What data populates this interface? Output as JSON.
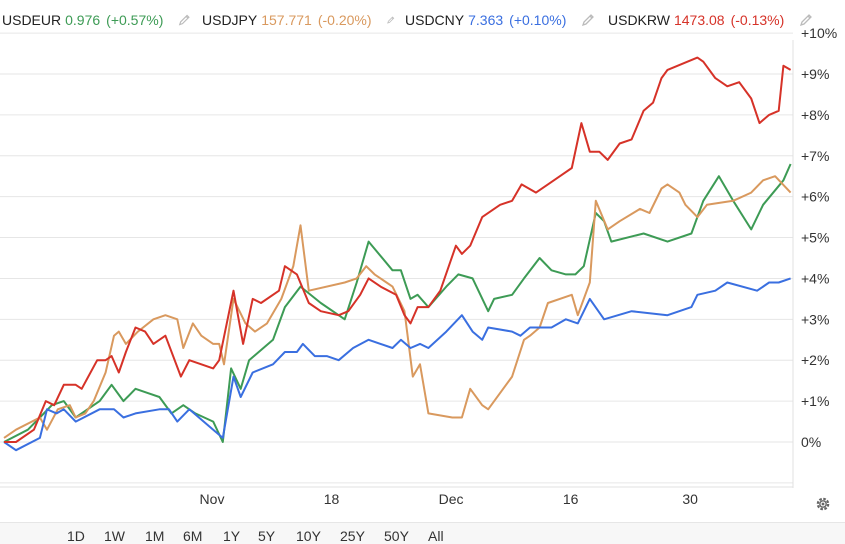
{
  "legend": [
    {
      "symbol": "USDEUR",
      "value": "0.976",
      "change": "(+0.57%)",
      "color": "#3d9b55"
    },
    {
      "symbol": "USDJPY",
      "value": "157.771",
      "change": "(-0.20%)",
      "color": "#d9995e"
    },
    {
      "symbol": "USDCNY",
      "value": "7.363",
      "change": "(+0.10%)",
      "color": "#3a6fe0"
    },
    {
      "symbol": "USDKRW",
      "value": "1473.08",
      "change": "(-0.13%)",
      "color": "#d63228"
    }
  ],
  "icons": {
    "edit": "pencil-icon",
    "settings": "gear-icon"
  },
  "range_buttons": [
    "1D",
    "1W",
    "1M",
    "6M",
    "1Y",
    "5Y",
    "10Y",
    "25Y",
    "50Y",
    "All"
  ],
  "chart_data": {
    "type": "line",
    "xlim": [
      0,
      66
    ],
    "ylim": [
      -1,
      10
    ],
    "y_ticks": [
      0,
      1,
      2,
      3,
      4,
      5,
      6,
      7,
      8,
      9
    ],
    "y_tick_labels": [
      "0%",
      "+1%",
      "+2%",
      "+3%",
      "+4%",
      "+5%",
      "+6%",
      "+7%",
      "+8%",
      "+9%"
    ],
    "top_tick_label": "+10%",
    "x_ticks": [
      {
        "x": 17.4,
        "label": "Nov"
      },
      {
        "x": 27.4,
        "label": "18"
      },
      {
        "x": 37.4,
        "label": "Dec"
      },
      {
        "x": 47.4,
        "label": "16"
      },
      {
        "x": 57.4,
        "label": "30"
      }
    ],
    "grid": true,
    "series": [
      {
        "name": "USDEUR",
        "color": "#3d9b55",
        "points": [
          [
            0,
            0
          ],
          [
            2,
            0.3
          ],
          [
            3,
            0.6
          ],
          [
            4,
            0.9
          ],
          [
            5,
            1.0
          ],
          [
            6,
            0.6
          ],
          [
            8,
            1.0
          ],
          [
            9,
            1.4
          ],
          [
            10,
            1.0
          ],
          [
            11,
            1.3
          ],
          [
            12,
            1.2
          ],
          [
            13,
            1.1
          ],
          [
            14,
            0.7
          ],
          [
            15,
            0.9
          ],
          [
            16,
            0.7
          ],
          [
            17.5,
            0.5
          ],
          [
            18.3,
            0.0
          ],
          [
            19,
            1.8
          ],
          [
            19.8,
            1.3
          ],
          [
            20.5,
            2.0
          ],
          [
            22.5,
            2.5
          ],
          [
            23.5,
            3.3
          ],
          [
            24.8,
            3.8
          ],
          [
            26.5,
            3.4
          ],
          [
            28.5,
            3.0
          ],
          [
            29.5,
            3.9
          ],
          [
            30.5,
            4.9
          ],
          [
            32.5,
            4.2
          ],
          [
            33.2,
            4.2
          ],
          [
            34,
            3.5
          ],
          [
            34.6,
            3.6
          ],
          [
            35.5,
            3.3
          ],
          [
            37,
            3.8
          ],
          [
            38,
            4.1
          ],
          [
            39.2,
            4.0
          ],
          [
            40.5,
            3.2
          ],
          [
            41,
            3.5
          ],
          [
            42.5,
            3.6
          ],
          [
            43.5,
            4.0
          ],
          [
            44.8,
            4.5
          ],
          [
            45.8,
            4.2
          ],
          [
            47,
            4.1
          ],
          [
            47.8,
            4.1
          ],
          [
            48.5,
            4.3
          ],
          [
            49.5,
            5.6
          ],
          [
            50.2,
            5.4
          ],
          [
            50.8,
            4.9
          ],
          [
            53.5,
            5.1
          ],
          [
            55.5,
            4.9
          ],
          [
            57.5,
            5.1
          ],
          [
            58.5,
            5.9
          ],
          [
            59.8,
            6.5
          ],
          [
            61,
            5.9
          ],
          [
            62.5,
            5.2
          ],
          [
            63.5,
            5.8
          ],
          [
            65.2,
            6.4
          ],
          [
            65.8,
            6.8
          ]
        ]
      },
      {
        "name": "USDJPY",
        "color": "#d9995e",
        "points": [
          [
            0,
            0.1
          ],
          [
            1,
            0.3
          ],
          [
            3,
            0.6
          ],
          [
            3.6,
            0.3
          ],
          [
            4.5,
            0.8
          ],
          [
            5.5,
            0.9
          ],
          [
            6,
            0.6
          ],
          [
            6.8,
            0.7
          ],
          [
            7.5,
            1.0
          ],
          [
            8.5,
            1.7
          ],
          [
            9.2,
            2.6
          ],
          [
            9.6,
            2.7
          ],
          [
            10.2,
            2.4
          ],
          [
            11.2,
            2.7
          ],
          [
            12.5,
            3.0
          ],
          [
            13.5,
            3.1
          ],
          [
            14.5,
            3.0
          ],
          [
            15,
            2.3
          ],
          [
            15.8,
            2.9
          ],
          [
            16.5,
            2.6
          ],
          [
            17.5,
            2.4
          ],
          [
            18,
            2.4
          ],
          [
            18.4,
            1.9
          ],
          [
            19.2,
            3.5
          ],
          [
            20.2,
            2.9
          ],
          [
            21,
            2.7
          ],
          [
            22,
            2.9
          ],
          [
            23.2,
            3.5
          ],
          [
            24.2,
            4.3
          ],
          [
            24.8,
            5.3
          ],
          [
            25.5,
            3.7
          ],
          [
            28.5,
            3.9
          ],
          [
            29.5,
            4.0
          ],
          [
            30.3,
            4.3
          ],
          [
            31,
            4.1
          ],
          [
            32.5,
            3.8
          ],
          [
            33.5,
            3.2
          ],
          [
            34.2,
            1.6
          ],
          [
            34.8,
            1.9
          ],
          [
            35.5,
            0.7
          ],
          [
            37.5,
            0.6
          ],
          [
            38.3,
            0.6
          ],
          [
            39,
            1.3
          ],
          [
            40,
            0.9
          ],
          [
            40.5,
            0.8
          ],
          [
            42.5,
            1.6
          ],
          [
            43.5,
            2.5
          ],
          [
            44,
            2.6
          ],
          [
            44.8,
            2.8
          ],
          [
            45.5,
            3.4
          ],
          [
            47.5,
            3.6
          ],
          [
            48,
            3.1
          ],
          [
            49,
            3.9
          ],
          [
            49.5,
            5.9
          ],
          [
            50.5,
            5.2
          ],
          [
            51.5,
            5.4
          ],
          [
            53.2,
            5.7
          ],
          [
            54,
            5.6
          ],
          [
            55,
            6.2
          ],
          [
            55.5,
            6.3
          ],
          [
            56.5,
            6.1
          ],
          [
            57,
            5.8
          ],
          [
            58,
            5.5
          ],
          [
            58.8,
            5.8
          ],
          [
            61,
            5.9
          ],
          [
            62.5,
            6.1
          ],
          [
            63.5,
            6.4
          ],
          [
            64.5,
            6.5
          ],
          [
            65.8,
            6.1
          ]
        ]
      },
      {
        "name": "USDCNY",
        "color": "#3a6fe0",
        "points": [
          [
            0,
            0
          ],
          [
            1,
            -0.2
          ],
          [
            3,
            0.1
          ],
          [
            3.6,
            0.8
          ],
          [
            4.4,
            0.7
          ],
          [
            5,
            0.8
          ],
          [
            6,
            0.5
          ],
          [
            8,
            0.8
          ],
          [
            9.2,
            0.8
          ],
          [
            10,
            0.6
          ],
          [
            11,
            0.7
          ],
          [
            13,
            0.8
          ],
          [
            13.8,
            0.8
          ],
          [
            14.5,
            0.5
          ],
          [
            15.5,
            0.8
          ],
          [
            17.5,
            0.3
          ],
          [
            18.3,
            0.1
          ],
          [
            19.2,
            1.6
          ],
          [
            19.8,
            1.1
          ],
          [
            20.8,
            1.7
          ],
          [
            22.5,
            1.9
          ],
          [
            23.5,
            2.2
          ],
          [
            24.5,
            2.2
          ],
          [
            25,
            2.4
          ],
          [
            26,
            2.1
          ],
          [
            27,
            2.1
          ],
          [
            28,
            2.0
          ],
          [
            29.2,
            2.3
          ],
          [
            30.5,
            2.5
          ],
          [
            32.5,
            2.3
          ],
          [
            33.2,
            2.5
          ],
          [
            34,
            2.3
          ],
          [
            34.8,
            2.4
          ],
          [
            35.5,
            2.3
          ],
          [
            37,
            2.7
          ],
          [
            38.3,
            3.1
          ],
          [
            39.2,
            2.7
          ],
          [
            40,
            2.5
          ],
          [
            40.5,
            2.8
          ],
          [
            42.5,
            2.7
          ],
          [
            43.2,
            2.6
          ],
          [
            44,
            2.8
          ],
          [
            45.8,
            2.8
          ],
          [
            47,
            3.0
          ],
          [
            48,
            2.9
          ],
          [
            49,
            3.5
          ],
          [
            50.2,
            3.0
          ],
          [
            52.5,
            3.2
          ],
          [
            55.5,
            3.1
          ],
          [
            57.5,
            3.3
          ],
          [
            58,
            3.6
          ],
          [
            59.5,
            3.7
          ],
          [
            60.5,
            3.9
          ],
          [
            63,
            3.7
          ],
          [
            64,
            3.9
          ],
          [
            64.8,
            3.9
          ],
          [
            65.8,
            4.0
          ]
        ]
      },
      {
        "name": "USDKRW",
        "color": "#d63228",
        "points": [
          [
            0,
            0
          ],
          [
            1,
            0
          ],
          [
            2.5,
            0.3
          ],
          [
            3.5,
            1.0
          ],
          [
            4.2,
            0.9
          ],
          [
            5,
            1.4
          ],
          [
            6,
            1.4
          ],
          [
            6.5,
            1.3
          ],
          [
            7.8,
            2.0
          ],
          [
            8.5,
            2.0
          ],
          [
            9,
            2.1
          ],
          [
            9.6,
            1.7
          ],
          [
            10.2,
            2.2
          ],
          [
            11,
            2.8
          ],
          [
            11.8,
            2.7
          ],
          [
            12.5,
            2.4
          ],
          [
            13.5,
            2.6
          ],
          [
            14.8,
            1.6
          ],
          [
            15.5,
            2.0
          ],
          [
            16.5,
            1.9
          ],
          [
            17.5,
            1.8
          ],
          [
            18,
            2.0
          ],
          [
            19.2,
            3.7
          ],
          [
            20,
            2.4
          ],
          [
            20.8,
            3.5
          ],
          [
            21.5,
            3.4
          ],
          [
            23,
            3.7
          ],
          [
            23.5,
            4.3
          ],
          [
            24.5,
            4.1
          ],
          [
            25.5,
            3.4
          ],
          [
            26.5,
            3.2
          ],
          [
            28,
            3.1
          ],
          [
            28.8,
            3.2
          ],
          [
            29.8,
            3.6
          ],
          [
            30.5,
            4.0
          ],
          [
            31.5,
            3.8
          ],
          [
            32.8,
            3.6
          ],
          [
            33.5,
            3.1
          ],
          [
            34,
            2.9
          ],
          [
            34.6,
            3.3
          ],
          [
            35.5,
            3.3
          ],
          [
            36.5,
            3.7
          ],
          [
            37.8,
            4.8
          ],
          [
            38.3,
            4.6
          ],
          [
            39,
            4.8
          ],
          [
            40,
            5.5
          ],
          [
            41.5,
            5.8
          ],
          [
            42.5,
            5.9
          ],
          [
            43.3,
            6.3
          ],
          [
            44.5,
            6.1
          ],
          [
            45.5,
            6.3
          ],
          [
            46.5,
            6.5
          ],
          [
            47.5,
            6.7
          ],
          [
            48.3,
            7.8
          ],
          [
            49,
            7.1
          ],
          [
            49.8,
            7.1
          ],
          [
            50.5,
            6.9
          ],
          [
            51.5,
            7.3
          ],
          [
            52.5,
            7.4
          ],
          [
            53.5,
            8.1
          ],
          [
            54.3,
            8.3
          ],
          [
            55,
            8.9
          ],
          [
            55.5,
            9.1
          ],
          [
            58,
            9.4
          ],
          [
            58.5,
            9.3
          ],
          [
            59.5,
            8.9
          ],
          [
            60.5,
            8.7
          ],
          [
            61.5,
            8.8
          ],
          [
            62.5,
            8.4
          ],
          [
            63.2,
            7.8
          ],
          [
            64,
            8.0
          ],
          [
            64.8,
            8.1
          ],
          [
            65.2,
            9.2
          ],
          [
            65.8,
            9.1
          ]
        ]
      }
    ]
  }
}
